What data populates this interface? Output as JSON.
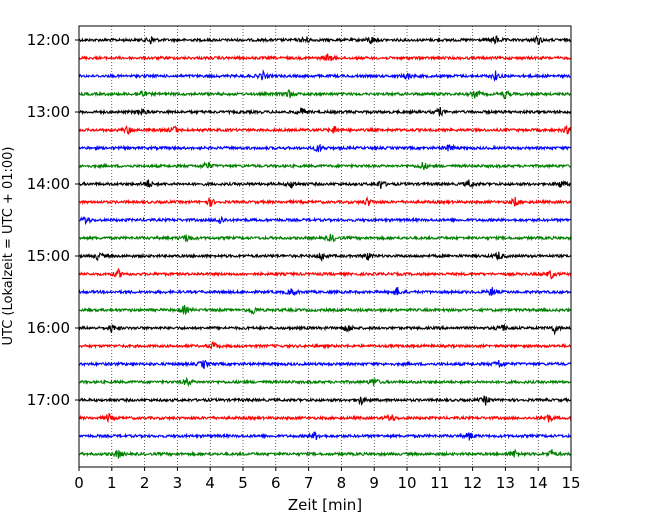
{
  "chart_data": {
    "type": "line",
    "xlabel": "Zeit  [min]",
    "ylabel": "UTC (Lokalzeit = UTC + 01:00)",
    "xlim": [
      0,
      15
    ],
    "x_ticks": [
      0,
      1,
      2,
      3,
      4,
      5,
      6,
      7,
      8,
      9,
      10,
      11,
      12,
      13,
      14,
      15
    ],
    "y_tick_labels": [
      "12:00",
      "13:00",
      "14:00",
      "15:00",
      "16:00",
      "17:00"
    ],
    "grid": "vertical dotted",
    "trace_interval_minutes": 15,
    "trace_color_cycle": [
      "#000000",
      "#ff0000",
      "#0000ff",
      "#008000"
    ],
    "traces": [
      {
        "start": "12:00",
        "color": "#000000",
        "events_min": [
          2.2,
          6.9,
          8.9,
          12.7,
          14.0
        ]
      },
      {
        "start": "12:15",
        "color": "#ff0000",
        "events_min": [
          7.6
        ]
      },
      {
        "start": "12:30",
        "color": "#0000ff",
        "events_min": [
          5.6,
          10.0,
          12.7
        ]
      },
      {
        "start": "12:45",
        "color": "#008000",
        "events_min": [
          1.9,
          6.4,
          12.1,
          13.0
        ]
      },
      {
        "start": "13:00",
        "color": "#000000",
        "events_min": [
          1.9,
          6.8,
          11.0
        ]
      },
      {
        "start": "13:15",
        "color": "#ff0000",
        "events_min": [
          1.5,
          2.9,
          7.8,
          14.9
        ]
      },
      {
        "start": "13:30",
        "color": "#0000ff",
        "events_min": [
          7.3,
          11.3
        ]
      },
      {
        "start": "13:45",
        "color": "#008000",
        "events_min": [
          3.9,
          10.5
        ]
      },
      {
        "start": "14:00",
        "color": "#000000",
        "events_min": [
          2.1,
          6.5,
          9.2,
          11.9,
          14.7
        ]
      },
      {
        "start": "14:15",
        "color": "#ff0000",
        "events_min": [
          4.0,
          8.8,
          13.3
        ]
      },
      {
        "start": "14:30",
        "color": "#0000ff",
        "events_min": [
          0.2,
          4.3
        ]
      },
      {
        "start": "14:45",
        "color": "#008000",
        "events_min": [
          3.3,
          7.7
        ]
      },
      {
        "start": "15:00",
        "color": "#000000",
        "events_min": [
          0.6,
          7.4,
          8.8,
          12.8
        ]
      },
      {
        "start": "15:15",
        "color": "#ff0000",
        "events_min": [
          1.2,
          14.4
        ]
      },
      {
        "start": "15:30",
        "color": "#0000ff",
        "events_min": [
          6.5,
          9.7,
          12.6
        ]
      },
      {
        "start": "15:45",
        "color": "#008000",
        "events_min": [
          3.2,
          5.3
        ]
      },
      {
        "start": "16:00",
        "color": "#000000",
        "events_min": [
          1.0,
          8.2,
          12.9,
          14.5
        ]
      },
      {
        "start": "16:15",
        "color": "#ff0000",
        "events_min": [
          4.1
        ]
      },
      {
        "start": "16:30",
        "color": "#0000ff",
        "events_min": [
          3.8,
          12.8
        ]
      },
      {
        "start": "16:45",
        "color": "#008000",
        "events_min": [
          3.3,
          9.0
        ]
      },
      {
        "start": "17:00",
        "color": "#000000",
        "events_min": [
          8.6,
          12.4
        ]
      },
      {
        "start": "17:15",
        "color": "#ff0000",
        "events_min": [
          0.9,
          9.5,
          14.3
        ]
      },
      {
        "start": "17:30",
        "color": "#0000ff",
        "events_min": [
          7.2,
          11.9
        ]
      },
      {
        "start": "17:45",
        "color": "#008000",
        "events_min": [
          1.2,
          13.3,
          14.4
        ]
      }
    ]
  }
}
